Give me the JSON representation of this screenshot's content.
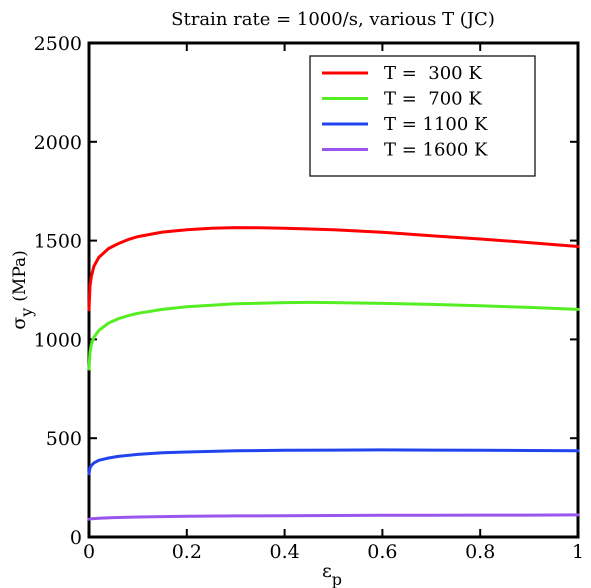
{
  "chart_data": {
    "type": "line",
    "title": "Strain rate = 1000/s, various T (JC)",
    "xlabel": {
      "main": "ε",
      "sub": "p"
    },
    "ylabel": {
      "main": "σ",
      "sub": "y",
      "unit": "(MPa)"
    },
    "xlim": [
      0,
      1
    ],
    "ylim": [
      0,
      2500
    ],
    "xticks": [
      0,
      0.2,
      0.4,
      0.6,
      0.8,
      1
    ],
    "xtick_labels": [
      "0",
      "0.2",
      "0.4",
      "0.6",
      "0.8",
      "1"
    ],
    "yticks": [
      0,
      500,
      1000,
      1500,
      2000,
      2500
    ],
    "ytick_labels": [
      "0",
      "500",
      "1000",
      "1500",
      "2000",
      "2500"
    ],
    "grid": false,
    "legend_position": "top-right",
    "series": [
      {
        "name": "T =  300 K",
        "color": "#ff0000",
        "x": [
          0,
          0.002,
          0.005,
          0.01,
          0.02,
          0.04,
          0.06,
          0.08,
          0.1,
          0.15,
          0.2,
          0.25,
          0.3,
          0.35,
          0.4,
          0.5,
          0.6,
          0.7,
          0.8,
          0.9,
          1.0
        ],
        "y": [
          1150,
          1270,
          1320,
          1370,
          1415,
          1460,
          1485,
          1505,
          1520,
          1543,
          1555,
          1563,
          1566,
          1565,
          1562,
          1555,
          1542,
          1525,
          1508,
          1490,
          1470
        ]
      },
      {
        "name": "T =  700 K",
        "color": "#55ee22",
        "x": [
          0,
          0.002,
          0.005,
          0.01,
          0.02,
          0.04,
          0.06,
          0.08,
          0.1,
          0.15,
          0.2,
          0.3,
          0.4,
          0.45,
          0.5,
          0.6,
          0.7,
          0.8,
          0.9,
          1.0
        ],
        "y": [
          850,
          935,
          975,
          1010,
          1045,
          1083,
          1105,
          1120,
          1132,
          1152,
          1165,
          1180,
          1186,
          1187,
          1186,
          1182,
          1177,
          1170,
          1162,
          1152
        ]
      },
      {
        "name": "T = 1100 K",
        "color": "#2244ee",
        "x": [
          0,
          0.002,
          0.005,
          0.01,
          0.02,
          0.04,
          0.06,
          0.1,
          0.15,
          0.2,
          0.3,
          0.4,
          0.5,
          0.6,
          0.7,
          0.8,
          0.9,
          1.0
        ],
        "y": [
          320,
          350,
          362,
          375,
          388,
          400,
          408,
          418,
          426,
          430,
          436,
          439,
          440,
          441,
          440,
          439,
          438,
          436
        ]
      },
      {
        "name": "T = 1600 K",
        "color": "#9955ee",
        "x": [
          0,
          0.005,
          0.01,
          0.02,
          0.05,
          0.1,
          0.2,
          0.3,
          0.4,
          0.5,
          0.6,
          0.7,
          0.8,
          0.9,
          1.0
        ],
        "y": [
          90,
          92,
          93,
          95,
          98,
          101,
          105,
          107,
          108,
          109,
          110,
          110,
          111,
          111,
          112
        ]
      }
    ]
  }
}
